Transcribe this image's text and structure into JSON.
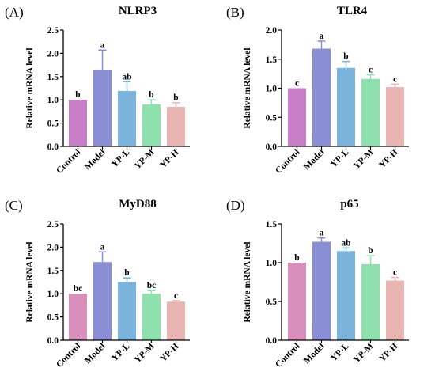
{
  "chart_data": [
    {
      "type": "bar",
      "panel_label": "(A)",
      "title": "NLRP3",
      "ylabel": "Relative mRNA level",
      "categories": [
        "Control",
        "Model",
        "YP-L",
        "YP-M",
        "YP-H"
      ],
      "values": [
        1.0,
        1.65,
        1.19,
        0.9,
        0.85
      ],
      "errors": [
        0.0,
        0.42,
        0.2,
        0.1,
        0.09
      ],
      "significance": [
        "b",
        "a",
        "ab",
        "b",
        "b"
      ],
      "ylim": [
        0,
        2.5
      ],
      "yticks": [
        "0.0",
        "0.5",
        "1.0",
        "1.5",
        "2.0",
        "2.5"
      ],
      "grid": false,
      "colors": [
        "#c87fc7",
        "#8a8fd5",
        "#7ab3dc",
        "#8ee0ac",
        "#e9b5b2"
      ]
    },
    {
      "type": "bar",
      "panel_label": "(B)",
      "title": "TLR4",
      "ylabel": "Relative mRNA level",
      "categories": [
        "Control",
        "Model",
        "YP-L",
        "YP-M",
        "YP-H"
      ],
      "values": [
        1.0,
        1.68,
        1.35,
        1.16,
        1.02
      ],
      "errors": [
        0.0,
        0.13,
        0.11,
        0.07,
        0.05
      ],
      "significance": [
        "c",
        "a",
        "b",
        "c",
        "c"
      ],
      "ylim": [
        0,
        2.0
      ],
      "yticks": [
        "0.0",
        "0.5",
        "1.0",
        "1.5",
        "2.0"
      ],
      "grid": false,
      "colors": [
        "#c87fc7",
        "#8a8fd5",
        "#7ab3dc",
        "#8ee0ac",
        "#e9b5b2"
      ]
    },
    {
      "type": "bar",
      "panel_label": "(C)",
      "title": "MyD88",
      "ylabel": "Relative mRNA level",
      "categories": [
        "Control",
        "Model",
        "YP-L",
        "YP-M",
        "YP-H"
      ],
      "values": [
        1.0,
        1.68,
        1.25,
        1.0,
        0.83
      ],
      "errors": [
        0.0,
        0.22,
        0.09,
        0.07,
        0.02
      ],
      "significance": [
        "bc",
        "a",
        "b",
        "bc",
        "c"
      ],
      "ylim": [
        0,
        2.5
      ],
      "yticks": [
        "0.0",
        "0.5",
        "1.0",
        "1.5",
        "2.0",
        "2.5"
      ],
      "grid": false,
      "colors": [
        "#d98fbb",
        "#8a8fd5",
        "#7ab3dc",
        "#8ee0ac",
        "#e9b5b2"
      ]
    },
    {
      "type": "bar",
      "panel_label": "(D)",
      "title": "p65",
      "ylabel": "Relative mRNA level",
      "categories": [
        "Control",
        "Model",
        "YP-L",
        "YP-M",
        "YP-H"
      ],
      "values": [
        1.0,
        1.27,
        1.15,
        0.98,
        0.77
      ],
      "errors": [
        0.0,
        0.05,
        0.04,
        0.11,
        0.04
      ],
      "significance": [
        "b",
        "a",
        "ab",
        "b",
        "c"
      ],
      "ylim": [
        0,
        1.5
      ],
      "yticks": [
        "0.0",
        "0.5",
        "1.0",
        "1.5"
      ],
      "grid": false,
      "colors": [
        "#d98fbb",
        "#8a8fd5",
        "#7ab3dc",
        "#8ee0ac",
        "#e9b5b2"
      ]
    }
  ]
}
